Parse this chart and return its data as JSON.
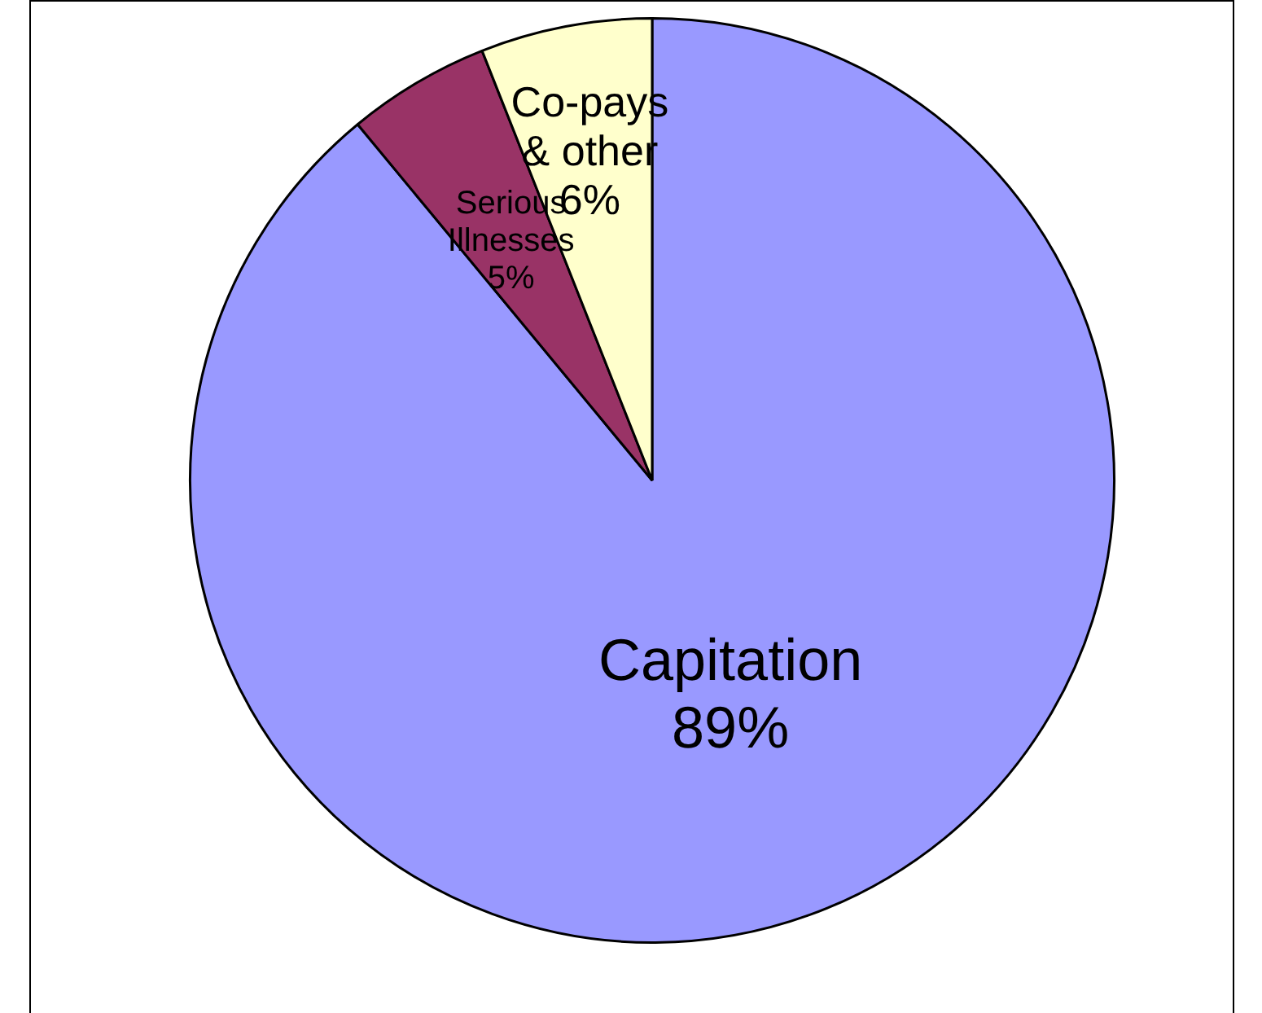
{
  "chart_data": {
    "type": "pie",
    "categories": [
      "Capitation",
      "Serious Illnesses",
      "Co-pays & other"
    ],
    "values": [
      89,
      5,
      6
    ],
    "colors": [
      "#9999ff",
      "#993366",
      "#ffffcc"
    ],
    "value_labels": [
      "89%",
      "5%",
      "6%"
    ],
    "legend": false
  }
}
